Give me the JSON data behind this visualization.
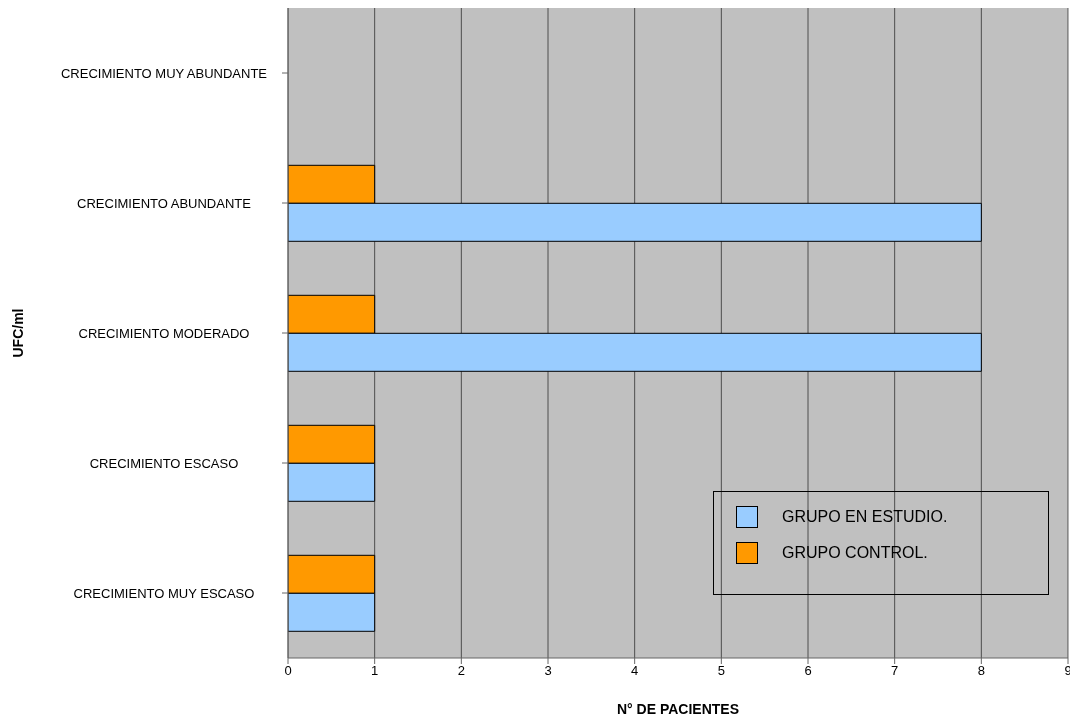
{
  "chart_data": {
    "type": "bar",
    "orientation": "horizontal",
    "xlabel": "N° DE PACIENTES",
    "ylabel": "UFC/ml",
    "categories": [
      "CRECIMIENTO MUY ABUNDANTE",
      "CRECIMIENTO ABUNDANTE",
      "CRECIMIENTO MODERADO",
      "CRECIMIENTO ESCASO",
      "CRECIMIENTO MUY ESCASO"
    ],
    "series": [
      {
        "name": "GRUPO EN ESTUDIO.",
        "color": "#99ccff",
        "values": [
          0,
          8,
          8,
          1,
          1
        ]
      },
      {
        "name": "GRUPO CONTROL.",
        "color": "#ff9900",
        "values": [
          0,
          1,
          1,
          1,
          1
        ]
      }
    ],
    "xlim": [
      0,
      9
    ],
    "xticks": [
      0,
      1,
      2,
      3,
      4,
      5,
      6,
      7,
      8,
      9
    ],
    "grid": "x",
    "legend": "bottom right"
  }
}
